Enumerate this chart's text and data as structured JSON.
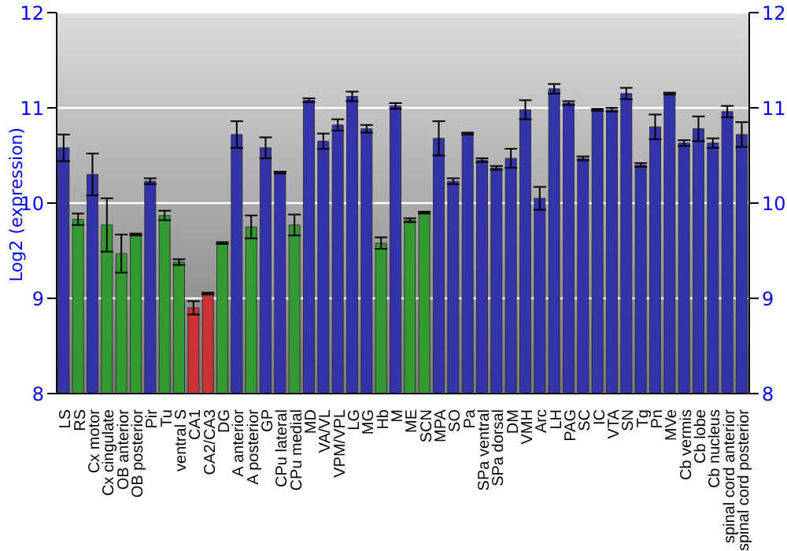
{
  "chart_data": {
    "type": "bar",
    "ylabel": "Log2 (expression)",
    "categories": [
      "LS",
      "RS",
      "Cx motor",
      "Cx cingulate",
      "OB anterior",
      "OB posterior",
      "Pir",
      "Tu",
      "ventral S",
      "CA1",
      "CA2/CA3",
      "DG",
      "A anterior",
      "A posterior",
      "GP",
      "CPu lateral",
      "CPu medial",
      "MD",
      "VA/VL",
      "VPM/VPL",
      "LG",
      "MG",
      "Hb",
      "M",
      "ME",
      "SCN",
      "MPA",
      "SO",
      "Pa",
      "SPa ventral",
      "SPa dorsal",
      "DM",
      "VMH",
      "Arc",
      "LH",
      "PAG",
      "SC",
      "IC",
      "VTA",
      "SN",
      "Tg",
      "Pn",
      "MVe",
      "Cb vermis",
      "Cb lobe",
      "Cb nucleus",
      "spinal cord anterior",
      "spinal cord posterior"
    ],
    "values": [
      10.58,
      9.83,
      10.3,
      9.77,
      9.47,
      9.67,
      10.23,
      9.87,
      9.38,
      8.9,
      9.05,
      9.58,
      10.72,
      9.75,
      10.58,
      10.32,
      9.77,
      11.08,
      10.65,
      10.82,
      11.12,
      10.78,
      9.58,
      11.02,
      9.82,
      9.9,
      10.68,
      10.23,
      10.73,
      10.45,
      10.37,
      10.47,
      10.98,
      10.05,
      11.2,
      11.05,
      10.47,
      10.98,
      10.98,
      11.15,
      10.4,
      10.8,
      11.15,
      10.63,
      10.78,
      10.63,
      10.96,
      10.72
    ],
    "errors": [
      0.14,
      0.06,
      0.22,
      0.28,
      0.2,
      0.01,
      0.03,
      0.05,
      0.03,
      0.07,
      0.01,
      0.01,
      0.14,
      0.12,
      0.11,
      0.01,
      0.11,
      0.02,
      0.08,
      0.06,
      0.05,
      0.04,
      0.06,
      0.03,
      0.02,
      0.01,
      0.18,
      0.03,
      0.01,
      0.02,
      0.02,
      0.1,
      0.1,
      0.12,
      0.05,
      0.02,
      0.02,
      0.01,
      0.02,
      0.06,
      0.02,
      0.13,
      0.01,
      0.03,
      0.13,
      0.05,
      0.06,
      0.13
    ],
    "colors": [
      "#3333aa",
      "#339933",
      "#3333aa",
      "#339933",
      "#339933",
      "#339933",
      "#3333aa",
      "#339933",
      "#339933",
      "#cc3333",
      "#cc3333",
      "#339933",
      "#3333aa",
      "#339933",
      "#3333aa",
      "#3333aa",
      "#339933",
      "#3333aa",
      "#3333aa",
      "#3333aa",
      "#3333aa",
      "#3333aa",
      "#339933",
      "#3333aa",
      "#339933",
      "#339933",
      "#3333aa",
      "#3333aa",
      "#3333aa",
      "#3333aa",
      "#3333aa",
      "#3333aa",
      "#3333aa",
      "#3333aa",
      "#3333aa",
      "#3333aa",
      "#3333aa",
      "#3333aa",
      "#3333aa",
      "#3333aa",
      "#3333aa",
      "#3333aa",
      "#3333aa",
      "#3333aa",
      "#3333aa",
      "#3333aa",
      "#3333aa",
      "#3333aa"
    ],
    "ylim": [
      8,
      12
    ],
    "yticks": [
      8,
      9,
      10,
      11,
      12
    ],
    "y2lim": [
      8,
      12
    ],
    "y2ticks": [
      8,
      9,
      10,
      11,
      12
    ],
    "grid": "y"
  }
}
